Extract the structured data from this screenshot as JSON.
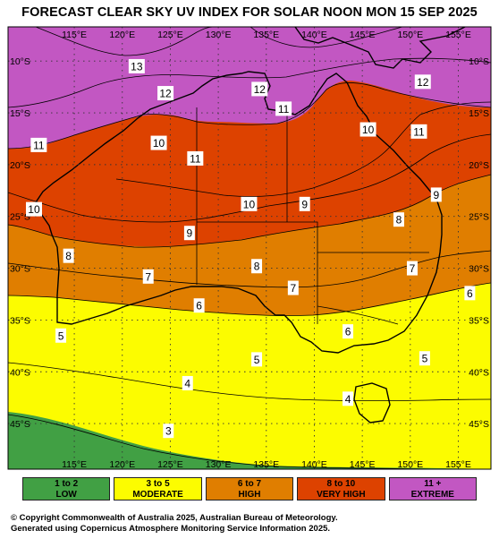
{
  "title": "FORECAST CLEAR SKY UV INDEX FOR SOLAR NOON MON 15 SEP 2025",
  "colors": {
    "low": "#41a044",
    "moderate": "#fcfc00",
    "high": "#e07e00",
    "very_high": "#dd4200",
    "extreme": "#c257c2"
  },
  "axes": {
    "lon_labels": [
      "115°E",
      "120°E",
      "125°E",
      "130°E",
      "135°E",
      "140°E",
      "145°E",
      "150°E",
      "155°E"
    ],
    "lat_labels": [
      "10°S",
      "15°S",
      "20°S",
      "25°S",
      "30°S",
      "35°S",
      "40°S",
      "45°S"
    ]
  },
  "contour_labels": [
    {
      "text": "13",
      "lon": 121.5,
      "lat": -10.5
    },
    {
      "text": "12",
      "lon": 124.5,
      "lat": -13.1
    },
    {
      "text": "12",
      "lon": 134.3,
      "lat": -12.7
    },
    {
      "text": "12",
      "lon": 151.3,
      "lat": -12.0
    },
    {
      "text": "11",
      "lon": 136.8,
      "lat": -14.6
    },
    {
      "text": "11",
      "lon": 150.9,
      "lat": -16.8
    },
    {
      "text": "11",
      "lon": 111.3,
      "lat": -18.1
    },
    {
      "text": "11",
      "lon": 127.6,
      "lat": -19.4
    },
    {
      "text": "10",
      "lon": 145.6,
      "lat": -16.6
    },
    {
      "text": "10",
      "lon": 123.8,
      "lat": -17.9
    },
    {
      "text": "10",
      "lon": 110.8,
      "lat": -24.3
    },
    {
      "text": "10",
      "lon": 133.2,
      "lat": -23.8
    },
    {
      "text": "9",
      "lon": 139.0,
      "lat": -23.8
    },
    {
      "text": "9",
      "lon": 152.7,
      "lat": -22.9
    },
    {
      "text": "9",
      "lon": 127.0,
      "lat": -26.6
    },
    {
      "text": "8",
      "lon": 148.8,
      "lat": -25.3
    },
    {
      "text": "8",
      "lon": 114.4,
      "lat": -28.8
    },
    {
      "text": "8",
      "lon": 134.0,
      "lat": -29.8
    },
    {
      "text": "7",
      "lon": 150.2,
      "lat": -30.0
    },
    {
      "text": "7",
      "lon": 122.7,
      "lat": -30.8
    },
    {
      "text": "7",
      "lon": 137.8,
      "lat": -31.9
    },
    {
      "text": "6",
      "lon": 156.2,
      "lat": -32.4
    },
    {
      "text": "6",
      "lon": 128.0,
      "lat": -33.6
    },
    {
      "text": "6",
      "lon": 143.5,
      "lat": -36.1
    },
    {
      "text": "5",
      "lon": 113.6,
      "lat": -36.5
    },
    {
      "text": "5",
      "lon": 151.5,
      "lat": -38.7
    },
    {
      "text": "5",
      "lon": 134.0,
      "lat": -38.8
    },
    {
      "text": "4",
      "lon": 126.8,
      "lat": -41.1
    },
    {
      "text": "4",
      "lon": 143.5,
      "lat": -42.6
    },
    {
      "text": "3",
      "lon": 124.8,
      "lat": -45.7
    }
  ],
  "legend": [
    {
      "range": "1 to 2",
      "label": "LOW",
      "color": "#41a044"
    },
    {
      "range": "3 to 5",
      "label": "MODERATE",
      "color": "#fcfc00"
    },
    {
      "range": "6 to 7",
      "label": "HIGH",
      "color": "#e07e00"
    },
    {
      "range": "8 to 10",
      "label": "VERY HIGH",
      "color": "#dd4200"
    },
    {
      "range": "11 +",
      "label": "EXTREME",
      "color": "#c257c2"
    }
  ],
  "footer": {
    "line1": "© Copyright Commonwealth of Australia 2025, Australian Bureau of Meteorology.",
    "line2": "Generated using Copernicus Atmosphere Monitoring Service Information 2025."
  }
}
